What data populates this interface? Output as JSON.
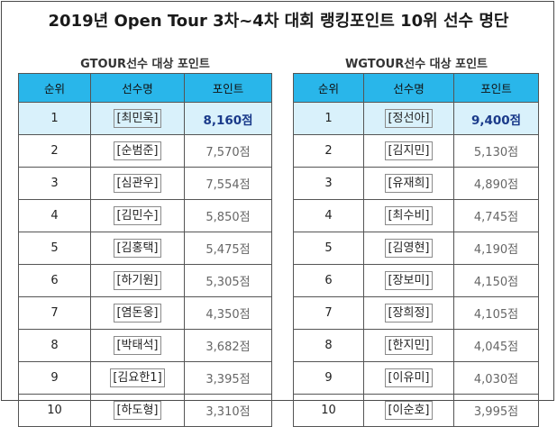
{
  "title": "2019년 Open Tour 3차~4차 대회 랭킹포인트 10위 선수 명단",
  "gtour": {
    "subtitle": "GTOUR선수 대상 포인트",
    "headers": [
      "순위",
      "선수명",
      "포인트"
    ],
    "rows": [
      {
        "rank": "1",
        "name": "[최민욱]",
        "points": "8,160점"
      },
      {
        "rank": "2",
        "name": "[순범준]",
        "points": "7,570점"
      },
      {
        "rank": "3",
        "name": "[심관우]",
        "points": "7,554점"
      },
      {
        "rank": "4",
        "name": "[김민수]",
        "points": "5,850점"
      },
      {
        "rank": "5",
        "name": "[김홍택]",
        "points": "5,475점"
      },
      {
        "rank": "6",
        "name": "[하기원]",
        "points": "5,305점"
      },
      {
        "rank": "7",
        "name": "[염돈웅]",
        "points": "4,350점"
      },
      {
        "rank": "8",
        "name": "[박태석]",
        "points": "3,682점"
      },
      {
        "rank": "9",
        "name": "[김요한1]",
        "points": "3,395점"
      },
      {
        "rank": "10",
        "name": "[하도형]",
        "points": "3,310점"
      }
    ]
  },
  "wgtour": {
    "subtitle": "WGTOUR선수 대상 포인트",
    "headers": [
      "순위",
      "선수명",
      "포인트"
    ],
    "rows": [
      {
        "rank": "1",
        "name": "[정선아]",
        "points": "9,400점"
      },
      {
        "rank": "2",
        "name": "[김지민]",
        "points": "5,130점"
      },
      {
        "rank": "3",
        "name": "[유재희]",
        "points": "4,890점"
      },
      {
        "rank": "4",
        "name": "[최수비]",
        "points": "4,745점"
      },
      {
        "rank": "5",
        "name": "[김영현]",
        "points": "4,190점"
      },
      {
        "rank": "6",
        "name": "[장보미]",
        "points": "4,150점"
      },
      {
        "rank": "7",
        "name": "[장희정]",
        "points": "4,105점"
      },
      {
        "rank": "8",
        "name": "[한지민]",
        "points": "4,045점"
      },
      {
        "rank": "9",
        "name": "[이유미]",
        "points": "4,030점"
      },
      {
        "rank": "10",
        "name": "[이순호]",
        "points": "3,995점"
      }
    ]
  },
  "colors": {
    "header_bg": "#29b6ea",
    "first_row_bg": "#d9f1fb",
    "first_points": "#1a3a8a"
  }
}
